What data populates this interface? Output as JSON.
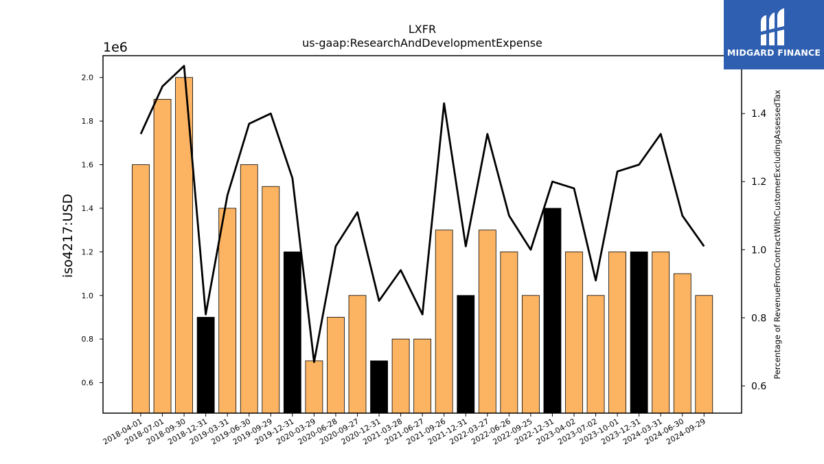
{
  "chart_data": {
    "type": "bar+line",
    "title": "LXFR",
    "subtitle": "us-gaap:ResearchAndDevelopmentExpense",
    "ylabel": "iso4217:USD",
    "y_offset_label": "1e6",
    "y2label": "Percentage of RevenueFromContractWithCustomerExcludingAssessedTax",
    "ylim": [
      0.46,
      2.1
    ],
    "y2lim": [
      0.52,
      1.57
    ],
    "yticks": [
      "0.6",
      "0.8",
      "1.0",
      "1.2",
      "1.4",
      "1.6",
      "1.8",
      "2.0"
    ],
    "y2ticks": [
      "0.6",
      "0.8",
      "1.0",
      "1.2",
      "1.4"
    ],
    "categories": [
      "2018-04-01",
      "2018-07-01",
      "2018-09-30",
      "2018-12-31",
      "2019-03-31",
      "2019-06-30",
      "2019-09-29",
      "2019-12-31",
      "2020-03-29",
      "2020-06-28",
      "2020-09-27",
      "2020-12-31",
      "2021-03-28",
      "2021-06-27",
      "2021-09-26",
      "2021-12-31",
      "2022-03-27",
      "2022-06-26",
      "2022-09-25",
      "2022-12-31",
      "2023-04-02",
      "2023-07-02",
      "2023-10-01",
      "2023-12-31",
      "2024-03-31",
      "2024-06-30",
      "2024-09-29"
    ],
    "series": [
      {
        "kind": "bar",
        "values": [
          1.6,
          1.9,
          2.0,
          0.9,
          1.4,
          1.6,
          1.5,
          1.2,
          0.7,
          0.9,
          1.0,
          0.7,
          0.8,
          0.8,
          1.3,
          1.0,
          1.3,
          1.2,
          1.0,
          1.4,
          1.2,
          1.0,
          1.2,
          1.2,
          1.2,
          1.1,
          1.0
        ],
        "fiscal_year_end": [
          false,
          false,
          false,
          true,
          false,
          false,
          false,
          true,
          false,
          false,
          false,
          true,
          false,
          false,
          false,
          true,
          false,
          false,
          false,
          true,
          false,
          false,
          false,
          true,
          false,
          false,
          false
        ]
      },
      {
        "kind": "line",
        "axis": "right",
        "values": [
          1.34,
          1.48,
          1.54,
          0.81,
          1.16,
          1.37,
          1.4,
          1.21,
          0.67,
          1.01,
          1.11,
          0.85,
          0.94,
          0.81,
          1.43,
          1.01,
          1.34,
          1.1,
          1.0,
          1.2,
          1.18,
          0.91,
          1.23,
          1.25,
          1.34,
          1.1,
          1.01
        ]
      }
    ],
    "colors": {
      "bar": "#fdb462",
      "bar_year_end": "#000000",
      "line": "#000000",
      "edge": "#000000"
    },
    "grid": false
  },
  "logo": {
    "text": "MIDGARD FINANCE",
    "background": "#2e5fb0",
    "icon": "midgard-logo-icon"
  }
}
